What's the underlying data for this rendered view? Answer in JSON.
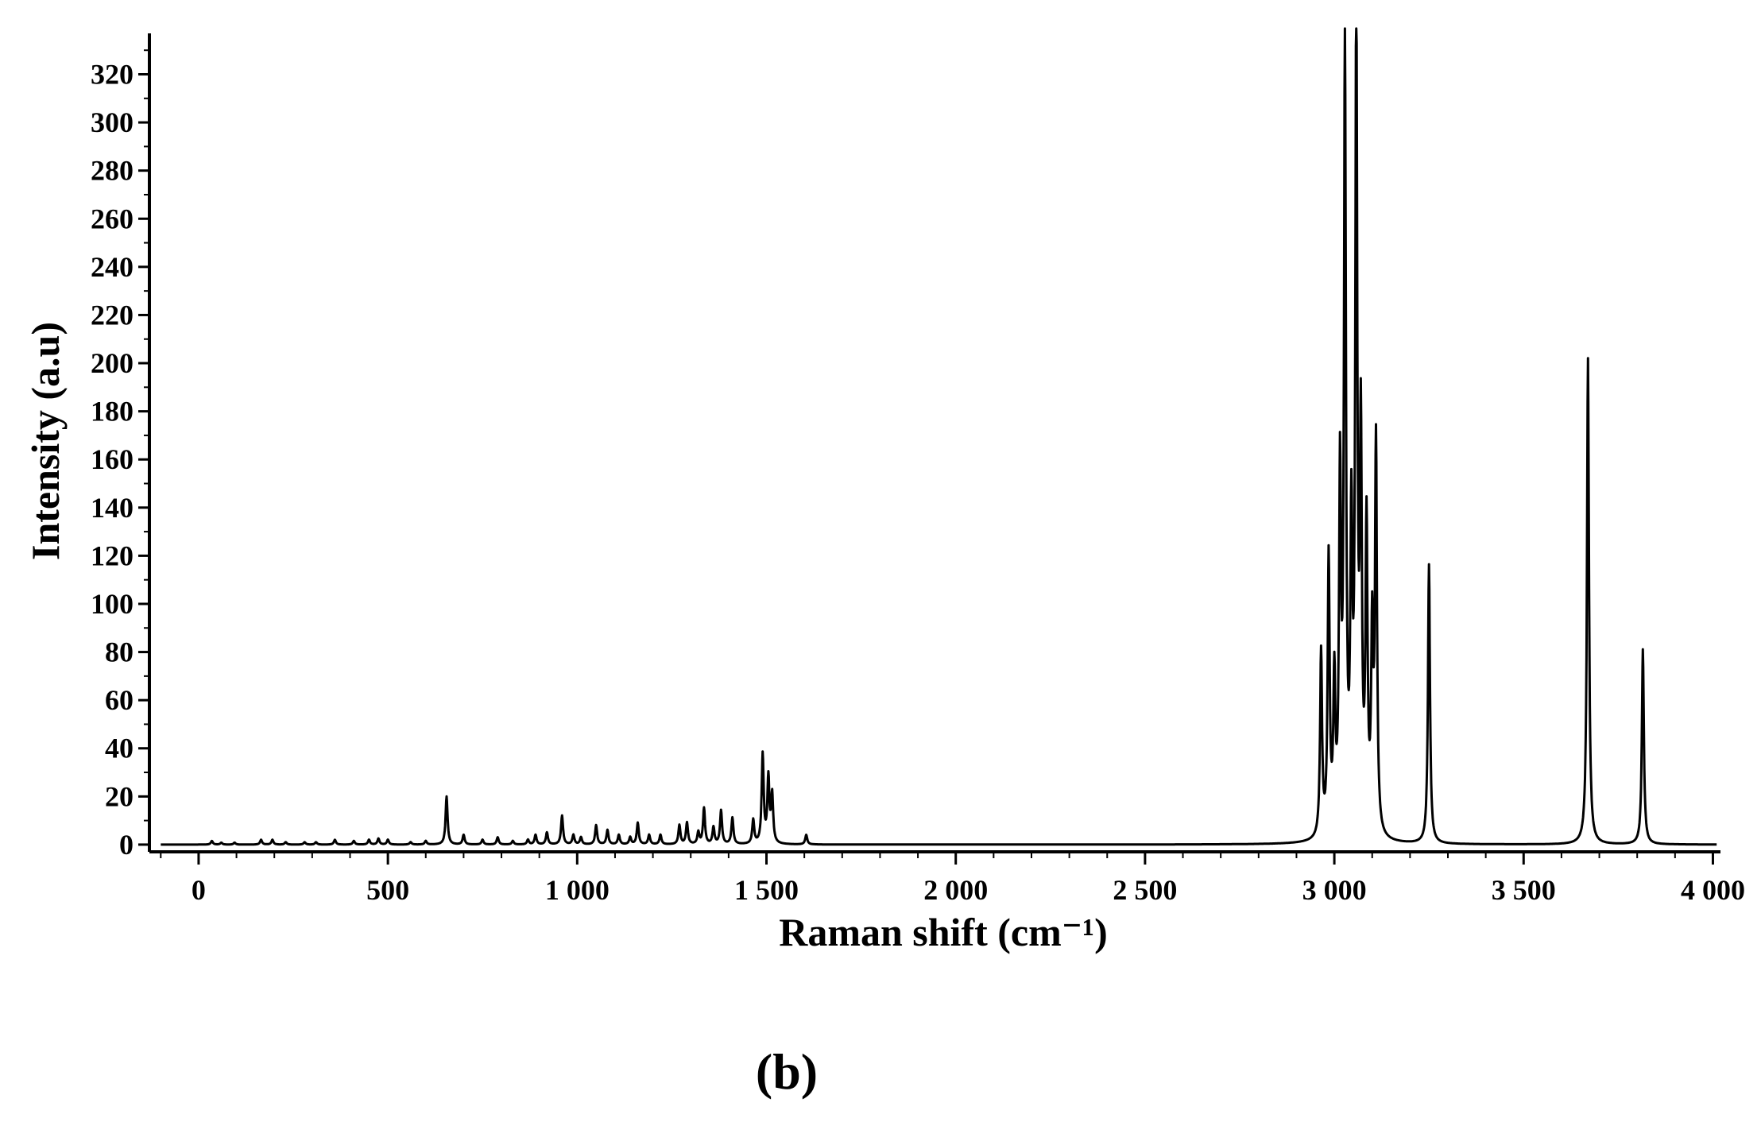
{
  "panel_label": "(b)",
  "chart_data": {
    "type": "line",
    "title": "",
    "xlabel": "Raman shift (cm⁻¹)",
    "ylabel": "Intensity (a.u)",
    "xlim": [
      -130,
      4020
    ],
    "ylim": [
      -3,
      337
    ],
    "x_ticks": [
      0,
      500,
      1000,
      1500,
      2000,
      2500,
      3000,
      3500,
      4000
    ],
    "x_tick_labels": [
      "0",
      "500",
      "1 000",
      "1 500",
      "2 000",
      "2 500",
      "3 000",
      "3 500",
      "4 000"
    ],
    "y_ticks": [
      0,
      20,
      40,
      60,
      80,
      100,
      120,
      140,
      160,
      180,
      200,
      220,
      240,
      260,
      280,
      300,
      320
    ],
    "y_tick_labels": [
      "0",
      "20",
      "40",
      "60",
      "80",
      "100",
      "120",
      "140",
      "160",
      "180",
      "200",
      "220",
      "240",
      "260",
      "280",
      "300",
      "320"
    ],
    "grid": false,
    "line_color": "#000000",
    "series": [
      {
        "peaks": [
          [
            35,
            1.5
          ],
          [
            60,
            0.8
          ],
          [
            95,
            0.8
          ],
          [
            165,
            2
          ],
          [
            195,
            2
          ],
          [
            230,
            1
          ],
          [
            280,
            1
          ],
          [
            310,
            1
          ],
          [
            360,
            2
          ],
          [
            410,
            1.5
          ],
          [
            450,
            2
          ],
          [
            475,
            2.5
          ],
          [
            500,
            2
          ],
          [
            560,
            1
          ],
          [
            600,
            1.5
          ],
          [
            655,
            20
          ],
          [
            700,
            4
          ],
          [
            750,
            2
          ],
          [
            790,
            3
          ],
          [
            830,
            1.5
          ],
          [
            870,
            2
          ],
          [
            890,
            4
          ],
          [
            920,
            5
          ],
          [
            960,
            12
          ],
          [
            990,
            4
          ],
          [
            1010,
            3
          ],
          [
            1050,
            8
          ],
          [
            1080,
            6
          ],
          [
            1110,
            4
          ],
          [
            1140,
            3
          ],
          [
            1160,
            9
          ],
          [
            1190,
            4
          ],
          [
            1220,
            4
          ],
          [
            1270,
            8
          ],
          [
            1290,
            9
          ],
          [
            1320,
            5
          ],
          [
            1335,
            15
          ],
          [
            1360,
            7
          ],
          [
            1380,
            14
          ],
          [
            1410,
            11
          ],
          [
            1465,
            10
          ],
          [
            1490,
            37
          ],
          [
            1505,
            27
          ],
          [
            1515,
            20
          ],
          [
            1605,
            4
          ],
          [
            2965,
            77
          ],
          [
            2985,
            115
          ],
          [
            3000,
            62
          ],
          [
            3015,
            145
          ],
          [
            3028,
            322
          ],
          [
            3045,
            120
          ],
          [
            3058,
            338
          ],
          [
            3070,
            160
          ],
          [
            3085,
            125
          ],
          [
            3100,
            80
          ],
          [
            3110,
            162
          ],
          [
            3250,
            116
          ],
          [
            3670,
            202
          ],
          [
            3815,
            81
          ]
        ]
      }
    ]
  }
}
